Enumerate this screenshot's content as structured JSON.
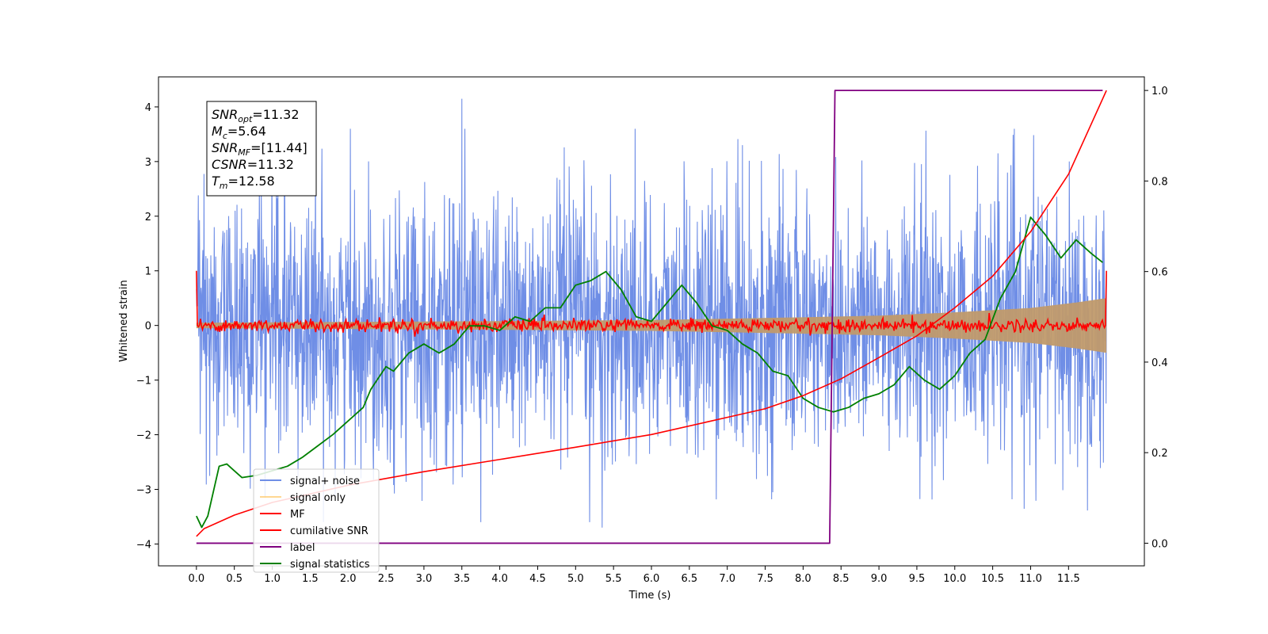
{
  "chart_data": {
    "type": "line",
    "title": "",
    "xlabel": "Time (s)",
    "ylabel": "Whitened strain",
    "y2label": "",
    "xlim": [
      -0.5,
      12.5
    ],
    "ylim": [
      -4.4,
      4.55
    ],
    "y2lim": [
      -0.05,
      1.03
    ],
    "x_ticks": [
      0.0,
      0.5,
      1.0,
      1.5,
      2.0,
      2.5,
      3.0,
      3.5,
      4.0,
      4.5,
      5.0,
      5.5,
      6.0,
      6.5,
      7.0,
      7.5,
      8.0,
      8.5,
      9.0,
      9.5,
      10.0,
      10.5,
      11.0,
      11.5
    ],
    "x_tick_labels": [
      "0.0",
      "0.5",
      "1.0",
      "1.5",
      "2.0",
      "2.5",
      "3.0",
      "3.5",
      "4.0",
      "4.5",
      "5.0",
      "5.5",
      "6.0",
      "6.5",
      "7.0",
      "7.5",
      "8.0",
      "8.5",
      "9.0",
      "9.5",
      "10.0",
      "10.5",
      "11.0",
      "11.5"
    ],
    "y_ticks": [
      -4,
      -3,
      -2,
      -1,
      0,
      1,
      2,
      3,
      4
    ],
    "y_tick_labels": [
      "−4",
      "−3",
      "−2",
      "−1",
      "0",
      "1",
      "2",
      "3",
      "4"
    ],
    "y2_ticks": [
      0.0,
      0.2,
      0.4,
      0.6,
      0.8,
      1.0
    ],
    "y2_tick_labels": [
      "0.0",
      "0.2",
      "0.4",
      "0.6",
      "0.8",
      "1.0"
    ],
    "legend_position": "lower-left",
    "grid": false,
    "annotation": {
      "position": "top-left",
      "lines": [
        {
          "base": "SNR",
          "sub": "opt",
          "rest": "=11.32"
        },
        {
          "base": "M",
          "sub": "c",
          "rest": "=5.64"
        },
        {
          "base": "SNR",
          "sub": "MF",
          "rest": "=[11.44]"
        },
        {
          "base": "CSNR",
          "sub": "",
          "rest": "=11.32"
        },
        {
          "base": "T",
          "sub": "m",
          "rest": "=12.58"
        }
      ]
    },
    "series": [
      {
        "name": "signal+ noise",
        "color": "#6f8ee6",
        "axis": "left",
        "style": "noise",
        "x_range": [
          0,
          12.0
        ],
        "typical_amplitude": 2.5,
        "max_peaks": [
          4.15,
          -3.7
        ]
      },
      {
        "name": "signal only",
        "color": "#ffc864",
        "axis": "left",
        "style": "chirp-envelope",
        "x_range": [
          0,
          12.0
        ],
        "envelope": [
          [
            0,
            0.05
          ],
          [
            4,
            0.08
          ],
          [
            6,
            0.1
          ],
          [
            8,
            0.15
          ],
          [
            9,
            0.18
          ],
          [
            10,
            0.24
          ],
          [
            11,
            0.32
          ],
          [
            11.6,
            0.42
          ],
          [
            12.0,
            0.5
          ]
        ]
      },
      {
        "name": "MF",
        "color": "#ff0000",
        "axis": "left",
        "style": "mf",
        "x_range": [
          0,
          12.0
        ],
        "endpoints": [
          1.0,
          1.0
        ],
        "typical_amplitude": 0.12
      },
      {
        "name": "cumilative SNR",
        "color": "#ff0000",
        "axis": "right",
        "x": [
          0.0,
          0.1,
          0.5,
          1.0,
          2.0,
          3.0,
          4.0,
          5.0,
          6.0,
          7.0,
          7.5,
          8.0,
          8.5,
          9.0,
          9.5,
          10.0,
          10.5,
          11.0,
          11.5,
          12.0
        ],
        "y": [
          0.015,
          0.032,
          0.062,
          0.09,
          0.128,
          0.158,
          0.185,
          0.212,
          0.24,
          0.278,
          0.297,
          0.326,
          0.363,
          0.41,
          0.458,
          0.52,
          0.59,
          0.688,
          0.815,
          1.0
        ]
      },
      {
        "name": "label",
        "color": "#800080",
        "axis": "right",
        "x": [
          0.0,
          8.35,
          8.42,
          11.95
        ],
        "y": [
          0.0,
          0.0,
          1.0,
          1.0
        ]
      },
      {
        "name": "signal statistics",
        "color": "#008000",
        "axis": "right",
        "x": [
          0.0,
          0.07,
          0.15,
          0.3,
          0.4,
          0.5,
          0.6,
          0.8,
          1.0,
          1.2,
          1.4,
          1.6,
          1.8,
          2.0,
          2.2,
          2.3,
          2.5,
          2.6,
          2.8,
          3.0,
          3.2,
          3.4,
          3.6,
          3.8,
          4.0,
          4.2,
          4.4,
          4.6,
          4.8,
          5.0,
          5.2,
          5.4,
          5.6,
          5.8,
          6.0,
          6.2,
          6.4,
          6.6,
          6.8,
          7.0,
          7.2,
          7.4,
          7.6,
          7.8,
          8.0,
          8.2,
          8.4,
          8.6,
          8.8,
          9.0,
          9.2,
          9.4,
          9.6,
          9.8,
          10.0,
          10.2,
          10.4,
          10.6,
          10.8,
          11.0,
          11.2,
          11.4,
          11.6,
          11.8,
          11.95
        ],
        "y": [
          0.06,
          0.035,
          0.06,
          0.17,
          0.175,
          0.16,
          0.145,
          0.15,
          0.16,
          0.17,
          0.19,
          0.215,
          0.24,
          0.27,
          0.3,
          0.34,
          0.39,
          0.38,
          0.42,
          0.44,
          0.42,
          0.44,
          0.48,
          0.48,
          0.47,
          0.5,
          0.49,
          0.52,
          0.52,
          0.57,
          0.58,
          0.6,
          0.56,
          0.5,
          0.49,
          0.53,
          0.57,
          0.53,
          0.48,
          0.47,
          0.44,
          0.42,
          0.38,
          0.37,
          0.32,
          0.3,
          0.29,
          0.3,
          0.32,
          0.33,
          0.35,
          0.39,
          0.36,
          0.34,
          0.37,
          0.42,
          0.45,
          0.54,
          0.6,
          0.72,
          0.68,
          0.63,
          0.67,
          0.64,
          0.62
        ]
      }
    ]
  }
}
